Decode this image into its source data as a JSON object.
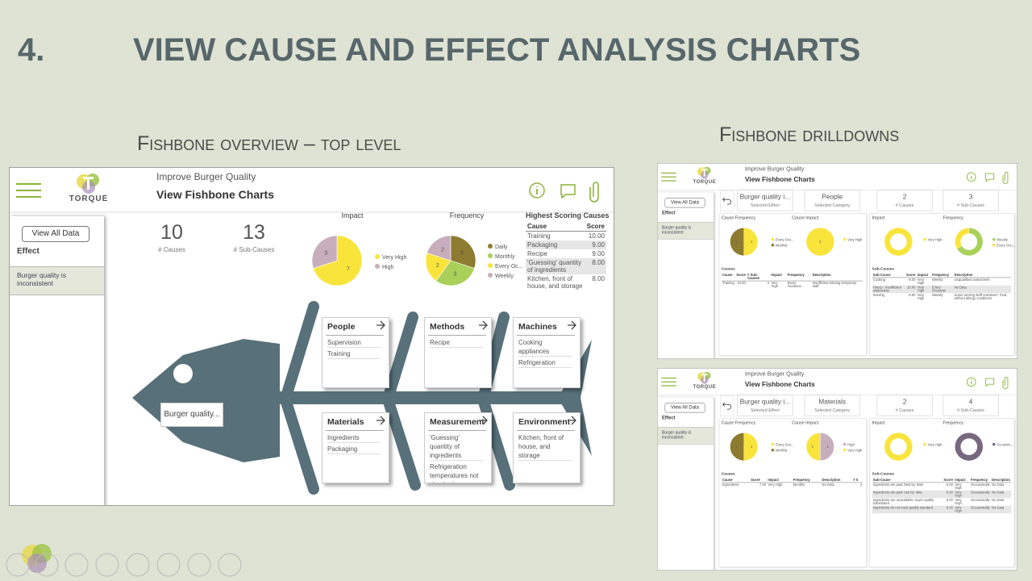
{
  "slide": {
    "number": "4.",
    "title": "VIEW CAUSE AND EFFECT ANALYSIS CHARTS",
    "overview_caption": "Fishbone overview – top level",
    "drilldown_caption": "Fishbone drilldowns"
  },
  "overview": {
    "app": {
      "logo": "TORQUE",
      "subtitle": "Improve Burger Quality",
      "title": "View Fishbone Charts",
      "view_all": "View All Data",
      "effect_label": "Effect",
      "effect": "Burger quality is inconsistent"
    },
    "kpis": [
      {
        "value": 10,
        "label": "# Causes"
      },
      {
        "value": 13,
        "label": "# Sub-Causes"
      }
    ],
    "pies": [
      {
        "title": "Impact",
        "slices": [
          {
            "name": "Very High",
            "value": 7,
            "color": "#f9e43b"
          },
          {
            "name": "High",
            "value": 3,
            "color": "#c8aebc"
          }
        ]
      },
      {
        "title": "Frequency",
        "slices": [
          {
            "name": "Daily",
            "value": 3,
            "color": "#8d7b2f"
          },
          {
            "name": "Monthly",
            "value": 3,
            "color": "#a9d15a"
          },
          {
            "name": "Every Oc...",
            "value": 2,
            "color": "#f9e43b"
          },
          {
            "name": "Weekly",
            "value": 2,
            "color": "#c8aebc"
          }
        ]
      }
    ],
    "top_causes": {
      "title": "Highest Scoring Causes",
      "columns": [
        "Cause",
        "Score"
      ],
      "rows": [
        [
          "Training",
          "10.00"
        ],
        [
          "Packaging",
          "9.00"
        ],
        [
          "Recipe",
          "9.00"
        ],
        [
          "'Guessing' quantity of ingredients",
          "8.00"
        ],
        [
          "Kitchen, front of house, and storage",
          "8.00"
        ]
      ]
    },
    "fishbone": {
      "head": "Burger quality...",
      "categories": [
        {
          "name": "People",
          "causes": [
            "Supervision",
            "Training"
          ]
        },
        {
          "name": "Methods",
          "causes": [
            "Recipe"
          ]
        },
        {
          "name": "Machines",
          "causes": [
            "Cooking appliances",
            "Refrigeration"
          ]
        },
        {
          "name": "Materials",
          "causes": [
            "Ingredients",
            "Packaging"
          ]
        },
        {
          "name": "Measurement",
          "causes": [
            "'Guessing' quantity of ingredients",
            "Refrigeration temperatures not checked"
          ]
        },
        {
          "name": "Environment",
          "causes": [
            "Kitchen, front of house, and storage"
          ]
        }
      ]
    }
  },
  "drilldowns": [
    {
      "cards": [
        {
          "value": "Burger quality i...",
          "label": "Selected Effect"
        },
        {
          "value": "People",
          "label": "Selected Category"
        },
        {
          "value": 2,
          "label": "# Causes"
        },
        {
          "value": 3,
          "label": "# Sub-Causes"
        }
      ],
      "pies": [
        {
          "title": "Cause Frequency",
          "donut": false,
          "slices": [
            {
              "name": "Every Ocu...",
              "value": 1,
              "color": "#f9e43b"
            },
            {
              "name": "Monthly",
              "value": 1,
              "color": "#8d7b2f"
            }
          ]
        },
        {
          "title": "Cause Impact",
          "donut": false,
          "slices": [
            {
              "name": "Very High",
              "value": 2,
              "color": "#f9e43b"
            }
          ]
        },
        {
          "title": "Impact",
          "donut": true,
          "slices": [
            {
              "name": "Very High",
              "value": 3,
              "color": "#f9e43b"
            }
          ]
        },
        {
          "title": "Frequency",
          "donut": true,
          "slices": [
            {
              "name": "Weekly",
              "value": 2,
              "color": "#a9d15a"
            },
            {
              "name": "Every Ocu...",
              "value": 1,
              "color": "#f9e43b"
            }
          ]
        }
      ],
      "causes": {
        "title": "Causes",
        "columns": [
          "Cause",
          "Score",
          "# Sub-Causes",
          "Impact",
          "Frequency",
          "Description"
        ],
        "rows": [
          [
            "Training",
            "10.00",
            "2",
            "Very High",
            "Every Occasion",
            "Insufficient training temporary staff"
          ]
        ]
      },
      "sub_causes": {
        "title": "Sub-Causes",
        "columns": [
          "Sub-Cause",
          "Score",
          "Impact",
          "Frequency",
          "Description"
        ],
        "rows": [
          [
            "Cooking",
            "8.00",
            "Very High",
            "Weekly",
            "Unqualified cooks/chefs"
          ],
          [
            "Haccp - insufficient awareness",
            "10.00",
            "Very High",
            "Every Occasion",
            "No Data"
          ],
          [
            "Serving",
            "8.00",
            "Very High",
            "Weekly",
            "Some serving staff untrained - food, without allergy conditions"
          ]
        ]
      }
    },
    {
      "cards": [
        {
          "value": "Burger quality i...",
          "label": "Selected Effect"
        },
        {
          "value": "Materials",
          "label": "Selected Category"
        },
        {
          "value": 2,
          "label": "# Causes"
        },
        {
          "value": 4,
          "label": "# Sub-Causes"
        }
      ],
      "pies": [
        {
          "title": "Cause Frequency",
          "donut": false,
          "slices": [
            {
              "name": "Every Ocu...",
              "value": 1,
              "color": "#f9e43b"
            },
            {
              "name": "Monthly",
              "value": 1,
              "color": "#8d7b2f"
            }
          ]
        },
        {
          "title": "Cause Impact",
          "donut": false,
          "slices": [
            {
              "name": "High",
              "value": 1,
              "color": "#c8aebc"
            },
            {
              "name": "Very High",
              "value": 1,
              "color": "#f9e43b"
            }
          ]
        },
        {
          "title": "Impact",
          "donut": true,
          "slices": [
            {
              "name": "Very High",
              "value": 4,
              "color": "#f9e43b"
            }
          ]
        },
        {
          "title": "Frequency",
          "donut": true,
          "slices": [
            {
              "name": "Occasion...",
              "value": 4,
              "color": "#77687f"
            }
          ]
        }
      ],
      "causes": {
        "title": "Causes",
        "columns": [
          "Cause",
          "Score",
          "Impact",
          "Frequency",
          "Description",
          "# S"
        ],
        "rows": [
          [
            "Ingredients",
            "7.00",
            "Very High",
            "Monthly",
            "No Data",
            "4"
          ]
        ]
      },
      "sub_causes": {
        "title": "Sub-Causes",
        "columns": [
          "Sub-Cause",
          "Score",
          "Impact",
          "Frequency",
          "Description"
        ],
        "rows": [
          [
            "Ingredients are past 'best by' date",
            "6.00",
            "Very High",
            "Occasionally",
            "No Data"
          ],
          [
            "Ingredients are past 'use by' date",
            "6.00",
            "Very High",
            "Occasionally",
            "No Data"
          ],
          [
            "Ingredients are unavailable, lower quality substituted",
            "6.00",
            "Very High",
            "Occasionally",
            "No Data"
          ],
          [
            "Ingredients do not meet quality standard",
            "6.00",
            "Very High",
            "Occasionally",
            "No Data"
          ]
        ]
      }
    }
  ]
}
